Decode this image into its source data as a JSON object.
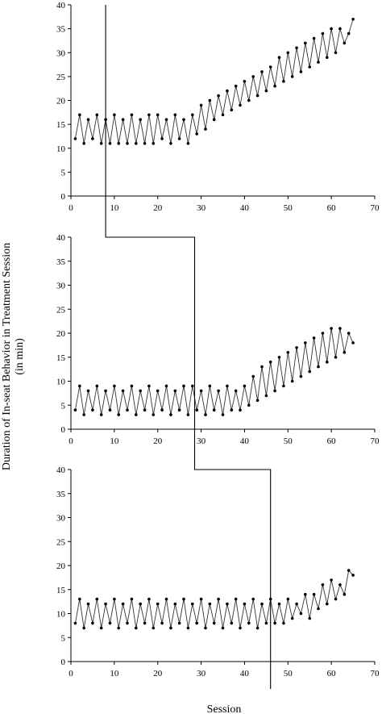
{
  "figure": {
    "ylabel_line1": "Duration of In-seat Behavior in Treatment Session",
    "ylabel_line2": "(in min)",
    "xlabel": "Session"
  },
  "chart_data": [
    {
      "type": "line",
      "panel": 1,
      "xlim": [
        0,
        70
      ],
      "ylim": [
        0,
        40
      ],
      "xticks": [
        0,
        10,
        20,
        30,
        40,
        50,
        60,
        70
      ],
      "yticks": [
        0,
        5,
        10,
        15,
        20,
        25,
        30,
        35,
        40
      ],
      "phase_change_after_session": 8,
      "x": [
        1,
        2,
        3,
        4,
        5,
        6,
        7,
        8,
        9,
        10,
        11,
        12,
        13,
        14,
        15,
        16,
        17,
        18,
        19,
        20,
        21,
        22,
        23,
        24,
        25,
        26,
        27,
        28,
        29,
        30,
        31,
        32,
        33,
        34,
        35,
        36,
        37,
        38,
        39,
        40,
        41,
        42,
        43,
        44,
        45,
        46,
        47,
        48,
        49,
        50,
        51,
        52,
        53,
        54,
        55,
        56,
        57,
        58,
        59,
        60,
        61,
        62,
        63,
        64,
        65
      ],
      "y": [
        12,
        17,
        11,
        16,
        12,
        17,
        11,
        16,
        11,
        17,
        11,
        16,
        11,
        17,
        11,
        16,
        11,
        17,
        11,
        17,
        12,
        16,
        11,
        17,
        12,
        16,
        11,
        17,
        13,
        19,
        14,
        20,
        16,
        21,
        17,
        22,
        18,
        23,
        19,
        24,
        20,
        25,
        21,
        26,
        22,
        27,
        23,
        29,
        24,
        30,
        25,
        31,
        26,
        32,
        27,
        33,
        28,
        34,
        29,
        35,
        30,
        35,
        32,
        34,
        37
      ]
    },
    {
      "type": "line",
      "panel": 2,
      "xlim": [
        0,
        70
      ],
      "ylim": [
        0,
        40
      ],
      "xticks": [
        0,
        10,
        20,
        30,
        40,
        50,
        60,
        70
      ],
      "yticks": [
        0,
        5,
        10,
        15,
        20,
        25,
        30,
        35,
        40
      ],
      "phase_change_after_session": 28.5,
      "x": [
        1,
        2,
        3,
        4,
        5,
        6,
        7,
        8,
        9,
        10,
        11,
        12,
        13,
        14,
        15,
        16,
        17,
        18,
        19,
        20,
        21,
        22,
        23,
        24,
        25,
        26,
        27,
        28,
        29,
        30,
        31,
        32,
        33,
        34,
        35,
        36,
        37,
        38,
        39,
        40,
        41,
        42,
        43,
        44,
        45,
        46,
        47,
        48,
        49,
        50,
        51,
        52,
        53,
        54,
        55,
        56,
        57,
        58,
        59,
        60,
        61,
        62,
        63,
        64,
        65
      ],
      "y": [
        4,
        9,
        3,
        8,
        4,
        9,
        3,
        8,
        4,
        9,
        3,
        8,
        4,
        9,
        3,
        8,
        4,
        9,
        3,
        8,
        4,
        9,
        3,
        8,
        4,
        9,
        3,
        9,
        4,
        8,
        3,
        9,
        4,
        8,
        3,
        9,
        4,
        8,
        4,
        9,
        5,
        11,
        6,
        13,
        7,
        14,
        8,
        15,
        9,
        16,
        10,
        17,
        11,
        18,
        12,
        19,
        13,
        20,
        14,
        21,
        15,
        21,
        16,
        20,
        18
      ]
    },
    {
      "type": "line",
      "panel": 3,
      "xlim": [
        0,
        70
      ],
      "ylim": [
        0,
        40
      ],
      "xticks": [
        0,
        10,
        20,
        30,
        40,
        50,
        60,
        70
      ],
      "yticks": [
        0,
        5,
        10,
        15,
        20,
        25,
        30,
        35,
        40
      ],
      "phase_change_after_session": 46,
      "x": [
        1,
        2,
        3,
        4,
        5,
        6,
        7,
        8,
        9,
        10,
        11,
        12,
        13,
        14,
        15,
        16,
        17,
        18,
        19,
        20,
        21,
        22,
        23,
        24,
        25,
        26,
        27,
        28,
        29,
        30,
        31,
        32,
        33,
        34,
        35,
        36,
        37,
        38,
        39,
        40,
        41,
        42,
        43,
        44,
        45,
        46,
        47,
        48,
        49,
        50,
        51,
        52,
        53,
        54,
        55,
        56,
        57,
        58,
        59,
        60,
        61,
        62,
        63,
        64,
        65
      ],
      "y": [
        8,
        13,
        7,
        12,
        8,
        13,
        7,
        12,
        8,
        13,
        7,
        12,
        8,
        13,
        7,
        12,
        8,
        13,
        7,
        12,
        8,
        13,
        7,
        12,
        8,
        13,
        7,
        12,
        8,
        13,
        7,
        12,
        8,
        13,
        7,
        12,
        8,
        13,
        7,
        12,
        8,
        13,
        7,
        12,
        8,
        13,
        8,
        12,
        8,
        13,
        9,
        12,
        10,
        14,
        9,
        14,
        11,
        16,
        12,
        17,
        13,
        16,
        14,
        19,
        18
      ]
    }
  ]
}
